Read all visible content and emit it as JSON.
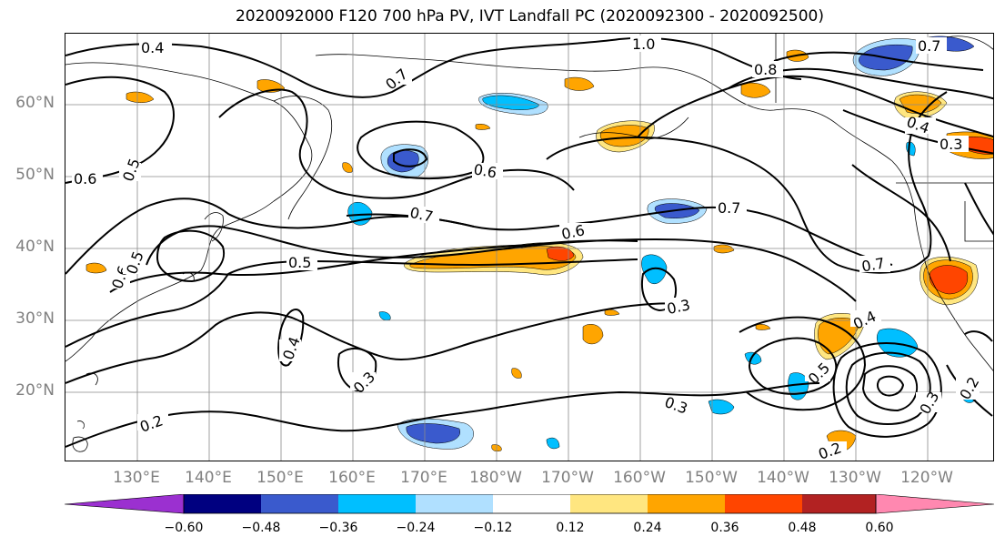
{
  "title": "2020092000 F120 700 hPa PV, IVT Landfall PC (2020092300 - 2020092500)",
  "latitude_labels": [
    "60°N",
    "50°N",
    "40°N",
    "30°N",
    "20°N"
  ],
  "longitude_labels": [
    "130°E",
    "140°E",
    "150°E",
    "160°E",
    "170°E",
    "180°W",
    "170°W",
    "160°W",
    "150°W",
    "140°W",
    "130°W",
    "120°W"
  ],
  "contour_labels": [
    "0.4",
    "0.7",
    "1.0",
    "0.8",
    "0.7",
    "0.6",
    "0.6",
    "0.5",
    "0.6",
    "0.7",
    "0.7",
    "0.5",
    "0.6",
    "0.5",
    "0.4",
    "0.3",
    "0.7",
    "0.4",
    "0.3",
    "0.3",
    "0.2",
    "0.3",
    "0.4",
    "0.5",
    "0.3",
    "0.2",
    "0.2"
  ],
  "colorbar": {
    "ticks": [
      "−0.60",
      "−0.48",
      "−0.36",
      "−0.24",
      "−0.12",
      "0.12",
      "0.24",
      "0.36",
      "0.48",
      "0.60"
    ],
    "colors": [
      "#9b30d0",
      "#000080",
      "#3a5acd",
      "#00bfff",
      "#b0e0ff",
      "#ffffff",
      "#ffe680",
      "#ffa500",
      "#ff4500",
      "#b22222",
      "#ff88b0"
    ]
  },
  "fill_colors": {
    "neg_light": "#b0e0ff",
    "neg_mid": "#00bfff",
    "neg_strong": "#3a5acd",
    "pos_light": "#ffe680",
    "pos_mid": "#ffa500",
    "pos_strong": "#ff4500"
  }
}
